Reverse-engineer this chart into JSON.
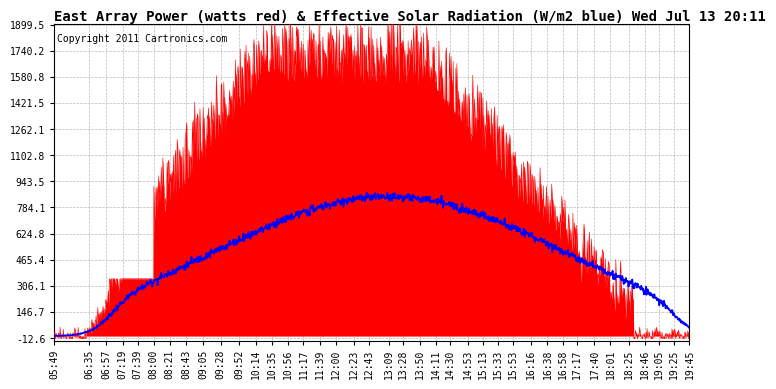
{
  "title": "East Array Power (watts red) & Effective Solar Radiation (W/m2 blue) Wed Jul 13 20:11",
  "copyright": "Copyright 2011 Cartronics.com",
  "ymin": -12.6,
  "ymax": 1899.5,
  "yticks": [
    -12.6,
    146.7,
    306.1,
    465.4,
    624.8,
    784.1,
    943.5,
    1102.8,
    1262.1,
    1421.5,
    1580.8,
    1740.2,
    1899.5
  ],
  "x_labels": [
    "05:49",
    "06:35",
    "06:57",
    "07:19",
    "07:39",
    "08:00",
    "08:21",
    "08:43",
    "09:05",
    "09:28",
    "09:52",
    "10:14",
    "10:35",
    "10:56",
    "11:17",
    "11:39",
    "12:00",
    "12:23",
    "12:43",
    "13:09",
    "13:28",
    "13:50",
    "14:11",
    "14:30",
    "14:53",
    "15:13",
    "15:33",
    "15:53",
    "16:16",
    "16:38",
    "16:58",
    "17:17",
    "17:40",
    "18:01",
    "18:25",
    "18:46",
    "19:05",
    "19:25",
    "19:45"
  ],
  "red_color": "#ff0000",
  "blue_color": "#0000ff",
  "title_fontsize": 10,
  "copyright_fontsize": 7,
  "tick_fontsize": 7
}
